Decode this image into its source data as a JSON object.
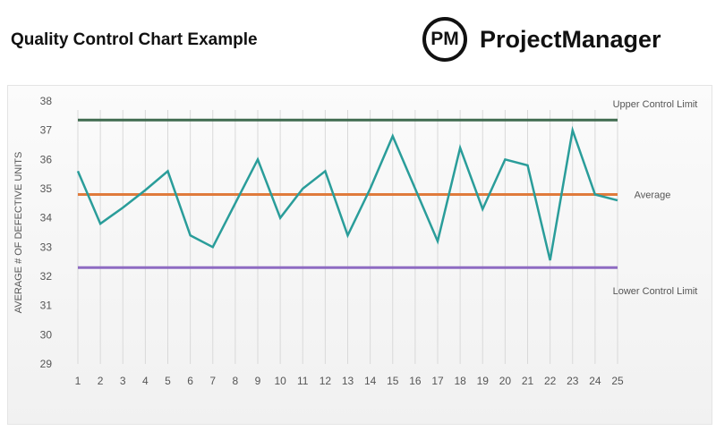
{
  "title": "Quality Control Chart Example",
  "logo": {
    "mark": "PM",
    "name": "ProjectManager"
  },
  "chart_data": {
    "type": "line",
    "title": "Quality Control Chart Example",
    "xlabel": "",
    "ylabel": "AVERAGE # OF DEFECTIVE UNITS",
    "ylim": [
      29,
      38
    ],
    "yticks": [
      29,
      30,
      31,
      32,
      33,
      34,
      35,
      36,
      37,
      38
    ],
    "x": [
      1,
      2,
      3,
      4,
      5,
      6,
      7,
      8,
      9,
      10,
      11,
      12,
      13,
      14,
      15,
      16,
      17,
      18,
      19,
      20,
      21,
      22,
      23,
      24,
      25
    ],
    "grid": "vertical",
    "series": [
      {
        "values": [
          35.6,
          33.8,
          34.35,
          34.95,
          35.6,
          33.4,
          33.0,
          34.5,
          36.0,
          34.0,
          35.0,
          35.6,
          33.4,
          35.0,
          36.8,
          35.0,
          33.2,
          36.4,
          34.3,
          36.0,
          35.8,
          32.55,
          37.0,
          34.8,
          34.6
        ],
        "color": "#2a9d9a"
      }
    ],
    "reference_lines": [
      {
        "name": "Upper Control Limit",
        "value": 37.35,
        "color": "#3f6b4f"
      },
      {
        "name": "Average",
        "value": 34.8,
        "color": "#e07b3c"
      },
      {
        "name": "Lower Control Limit",
        "value": 32.3,
        "color": "#8e6bc2"
      }
    ]
  }
}
